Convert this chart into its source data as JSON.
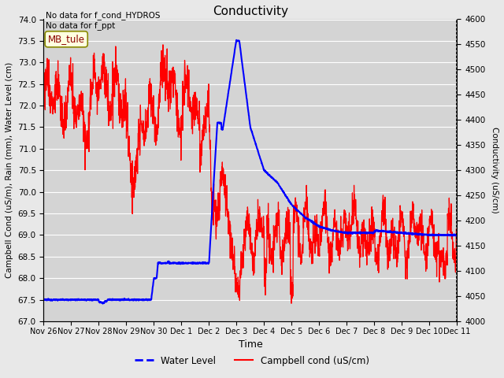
{
  "title": "Conductivity",
  "xlabel": "Time",
  "ylabel_left": "Campbell Cond (uS/m), Rain (mm), Water Level (cm)",
  "ylabel_right": "Conductivity (uS/cm)",
  "annotation_top": "No data for f_cond_HYDROS\nNo data for f_ppt",
  "legend_box_label": "MB_tule",
  "ylim_left": [
    67.0,
    74.0
  ],
  "ylim_right": [
    4000,
    4600
  ],
  "yticks_left": [
    67.0,
    67.5,
    68.0,
    68.5,
    69.0,
    69.5,
    70.0,
    70.5,
    71.0,
    71.5,
    72.0,
    72.5,
    73.0,
    73.5,
    74.0
  ],
  "yticks_right": [
    4000,
    4050,
    4100,
    4150,
    4200,
    4250,
    4300,
    4350,
    4400,
    4450,
    4500,
    4550,
    4600
  ],
  "xtick_labels": [
    "Nov 26",
    "Nov 27",
    "Nov 28",
    "Nov 29",
    "Nov 30",
    "Dec 1",
    "Dec 2",
    "Dec 3",
    "Dec 4",
    "Dec 5",
    "Dec 6",
    "Dec 7",
    "Dec 8",
    "Dec 9",
    "Dec 10",
    "Dec 11"
  ],
  "background_color": "#e8e8e8",
  "plot_bg_color": "#d4d4d4",
  "grid_color": "#ffffff",
  "water_line_color": "blue",
  "cond_line_color": "red",
  "legend_items": [
    {
      "label": "Water Level",
      "color": "blue",
      "lw": 2,
      "ls": "--"
    },
    {
      "label": "Campbell cond (uS/cm)",
      "color": "red",
      "lw": 1.5,
      "ls": "-"
    }
  ]
}
